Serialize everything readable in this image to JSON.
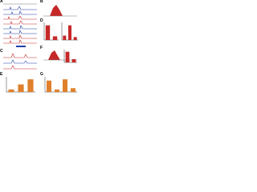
{
  "panels": [
    "A",
    "B",
    "C",
    "D",
    "E",
    "F",
    "G"
  ],
  "bar_charts": [
    {
      "color": "#c62828",
      "values": [
        1,
        0.25
      ],
      "ylim": [
        0,
        1.2
      ]
    },
    {
      "color": "#c62828",
      "values": [
        0.3,
        1,
        0.2
      ],
      "ylim": [
        0,
        1.2
      ]
    },
    {
      "color": "#c62828",
      "values": [
        1,
        0.3
      ],
      "ylim": [
        0,
        1.2
      ]
    },
    {
      "color": "#e0802c",
      "values": [
        0.2,
        0.6,
        1
      ],
      "ylim": [
        0,
        1.2
      ]
    },
    {
      "color": "#e0802c",
      "values": [
        0.9,
        0.2,
        1,
        0.3
      ],
      "ylim": [
        0,
        1.2
      ]
    }
  ]
}
